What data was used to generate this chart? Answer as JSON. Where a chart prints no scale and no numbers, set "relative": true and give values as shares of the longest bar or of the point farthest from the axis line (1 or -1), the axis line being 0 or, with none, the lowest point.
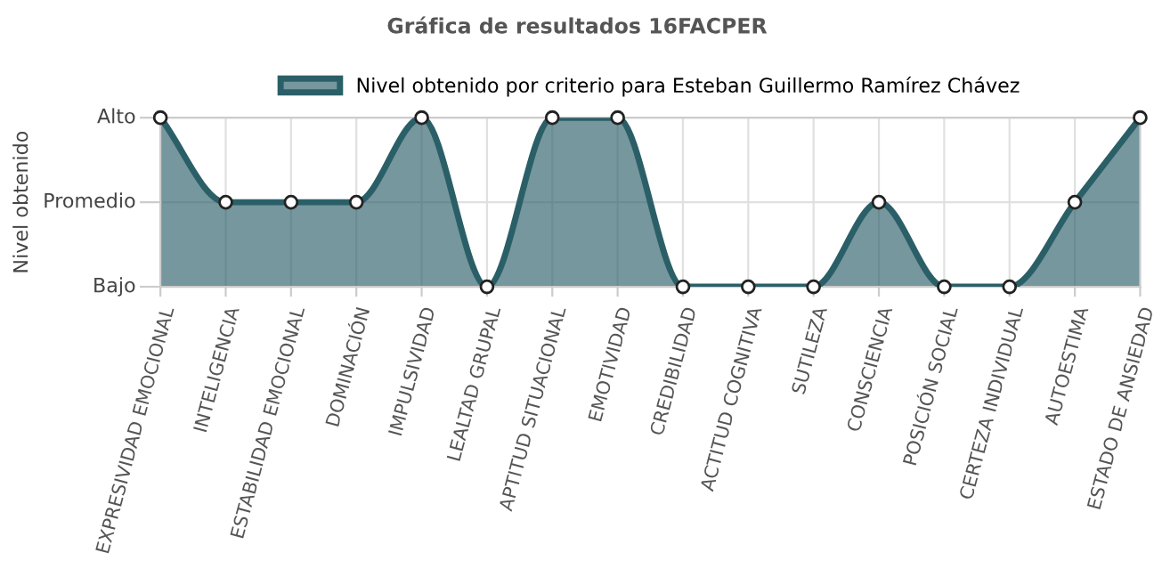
{
  "chart_data": {
    "type": "area",
    "title": "Gráfica de resultados 16FACPER",
    "ylabel": "Nivel obtenido",
    "categories": [
      "EXPRESIVIDAD EMOCIONAL",
      "INTELIGENCIA",
      "ESTABILIDAD EMOCIONAL",
      "DOMINACIÓN",
      "IMPULSIVIDAD",
      "LEALTAD GRUPAL",
      "APTITUD SITUACIONAL",
      "EMOTIVIDAD",
      "CREDIBILIDAD",
      "ACTITUD COGNITIVA",
      "SUTILEZA",
      "CONSCIENCIA",
      "POSICIÓN SOCIAL",
      "CERTEZA INDIVIDUAL",
      "AUTOESTIMA",
      "ESTADO DE ANSIEDAD"
    ],
    "series": [
      {
        "name": "Nivel obtenido por criterio para Esteban Guillermo Ramírez Chávez",
        "color": "#2b5f68",
        "values": [
          1,
          0.5,
          0.5,
          0.5,
          1,
          0,
          1,
          1,
          0,
          0,
          0,
          0.5,
          0,
          0,
          0.5,
          1
        ]
      }
    ],
    "relative": true,
    "annotations": [
      "Bajo",
      "Promedio",
      "Alto"
    ],
    "grid": true,
    "legend": "top",
    "marker": "circle",
    "line_style": "solid"
  }
}
